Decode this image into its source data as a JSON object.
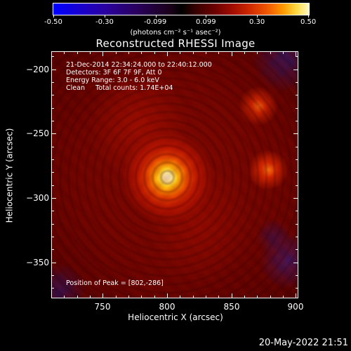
{
  "colorbar": {
    "tick_labels": [
      "-0.50",
      "-0.30",
      "-0.099",
      "0.099",
      "0.30",
      "0.50"
    ],
    "unit_label": "(photons cm⁻² s⁻¹ asec⁻²)",
    "range": [
      -0.5,
      0.5
    ]
  },
  "plot": {
    "title": "Reconstructed RHESSI Image",
    "info_lines": [
      "21-Dec-2014 22:34:24.000 to 22:40:12.000",
      "Detectors: 3F 6F 7F 9F, Att 0",
      "Energy Range: 3.0 - 6.0 keV",
      "Clean     Total counts: 1.74E+04"
    ],
    "peak_text": "Position of Peak = [802,-286]",
    "xlabel": "Heliocentric X (arcsec)",
    "ylabel": "Heliocentric Y (arcsec)",
    "x_ticks": [
      "750",
      "800",
      "850",
      "900"
    ],
    "y_ticks": [
      "-200",
      "-250",
      "-300",
      "-350"
    ],
    "xlim": [
      710,
      902
    ],
    "ylim": [
      -378,
      -186
    ]
  },
  "footer": {
    "timestamp": "20-May-2022 21:51"
  },
  "colors": {
    "background": "#000000",
    "text": "#ffffff"
  }
}
